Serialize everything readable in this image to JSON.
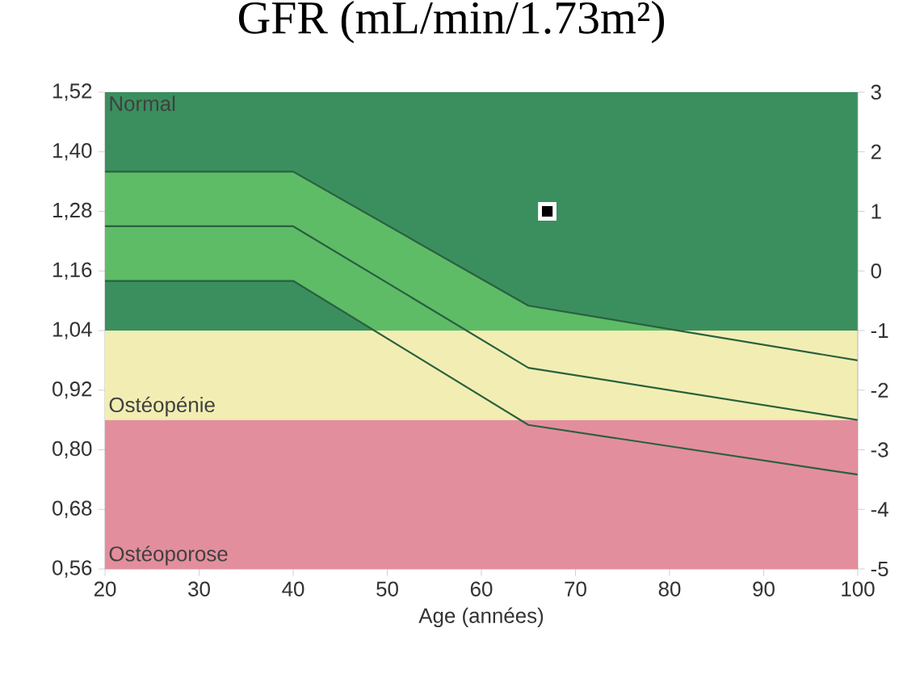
{
  "chart_data": {
    "type": "line",
    "title": "GFR (mL/min/1.73m²)",
    "xlabel": "Age (années)",
    "xlim": [
      20,
      100
    ],
    "xticks": [
      20,
      30,
      40,
      50,
      60,
      70,
      80,
      90,
      100
    ],
    "ylim": [
      0.56,
      1.52
    ],
    "yticks": [
      {
        "value": 0.56,
        "label": "0,56"
      },
      {
        "value": 0.68,
        "label": "0,68"
      },
      {
        "value": 0.8,
        "label": "0,80"
      },
      {
        "value": 0.92,
        "label": "0,92"
      },
      {
        "value": 1.04,
        "label": "1,04"
      },
      {
        "value": 1.16,
        "label": "1,16"
      },
      {
        "value": 1.28,
        "label": "1,28"
      },
      {
        "value": 1.4,
        "label": "1,40"
      },
      {
        "value": 1.52,
        "label": "1,52"
      }
    ],
    "y2lim": [
      -5,
      3
    ],
    "y2ticks": [
      -5,
      -4,
      -3,
      -2,
      -1,
      0,
      1,
      2,
      3
    ],
    "bands": [
      {
        "axis": "y",
        "from": 1.04,
        "to": 1.52,
        "label": "Normal",
        "color": "#3b8f5f"
      },
      {
        "axis": "y",
        "from": 0.86,
        "to": 1.04,
        "label": "Ostéopénie",
        "color": "#f2eeb3"
      },
      {
        "axis": "y",
        "from": 0.56,
        "to": 0.86,
        "label": "Ostéoporose",
        "color": "#e38e9d"
      }
    ],
    "series": [
      {
        "type": "line",
        "color": "#2a603f",
        "x": [
          20,
          40,
          65,
          100
        ],
        "values": [
          1.36,
          1.36,
          1.09,
          0.98
        ]
      },
      {
        "color": "#2a603f",
        "x": [
          20,
          40,
          65,
          100
        ],
        "values": [
          1.25,
          1.25,
          0.965,
          0.86
        ],
        "lower": [
          1.14,
          1.14,
          0.85,
          0.75
        ],
        "upper": [
          1.36,
          1.36,
          1.09,
          0.98
        ]
      },
      {
        "type": "line",
        "color": "#2a603f",
        "x": [
          20,
          40,
          65,
          100
        ],
        "values": [
          1.14,
          1.14,
          0.85,
          0.75
        ]
      },
      {
        "type": "scatter",
        "marker": "square",
        "color": "#000000",
        "x": [
          67
        ],
        "values": [
          1.28
        ]
      }
    ]
  }
}
